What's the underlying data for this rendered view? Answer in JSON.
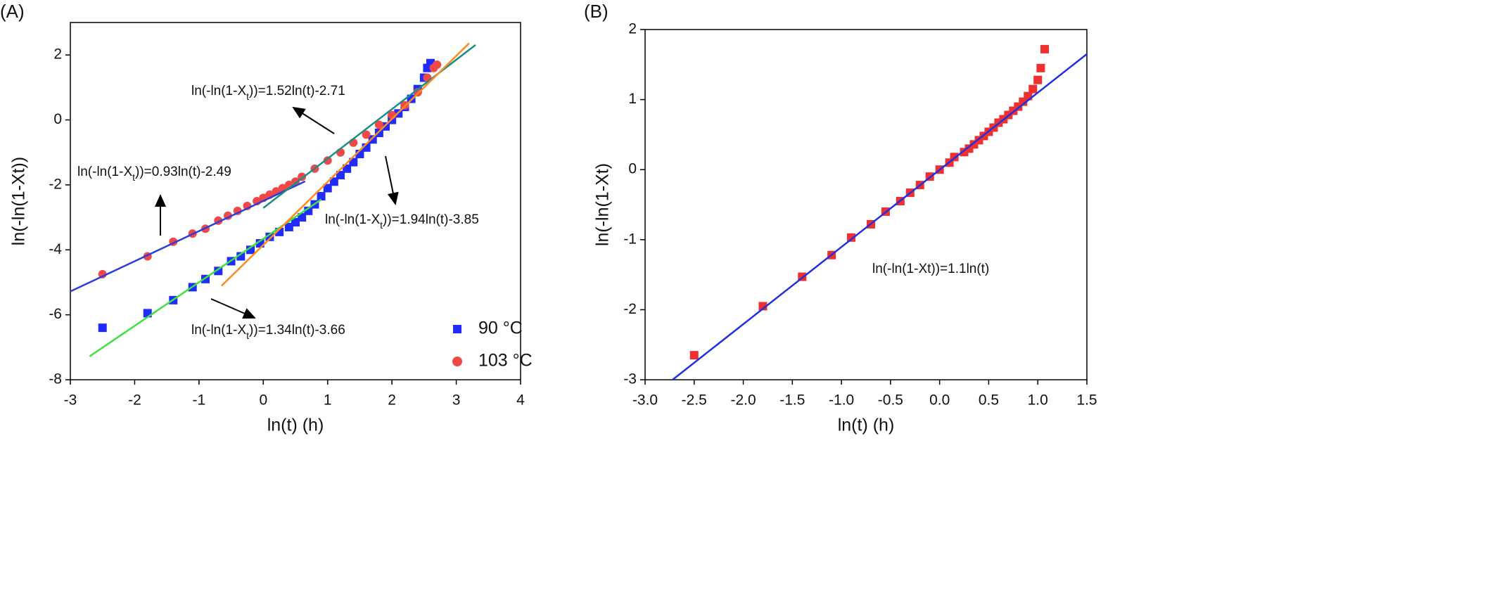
{
  "chart_data": [
    {
      "type": "scatter",
      "title": "(A)",
      "x_label": "ln(t) (h)",
      "y_label": "ln(-ln(1-Xt))",
      "xlim": [
        -3,
        4
      ],
      "ylim": [
        -8,
        3
      ],
      "xticks": [
        -3,
        -2,
        -1,
        0,
        1,
        2,
        3,
        4
      ],
      "yticks": [
        -8,
        -6,
        -4,
        -2,
        0,
        2
      ],
      "legend": "lower right",
      "series": [
        {
          "name": "90 °C",
          "color": "#1f2bff",
          "marker": "square",
          "x": [
            -2.5,
            -1.8,
            -1.4,
            -1.1,
            -0.9,
            -0.7,
            -0.5,
            -0.35,
            -0.2,
            -0.05,
            0.1,
            0.25,
            0.4,
            0.5,
            0.6,
            0.7,
            0.8,
            0.9,
            1.0,
            1.1,
            1.2,
            1.3,
            1.4,
            1.5,
            1.6,
            1.7,
            1.8,
            1.9,
            2.0,
            2.1,
            2.2,
            2.3,
            2.4,
            2.5,
            2.55,
            2.6
          ],
          "values": [
            -6.4,
            -5.95,
            -5.55,
            -5.15,
            -4.9,
            -4.65,
            -4.35,
            -4.2,
            -4.0,
            -3.8,
            -3.6,
            -3.45,
            -3.3,
            -3.15,
            -3.0,
            -2.8,
            -2.6,
            -2.35,
            -2.1,
            -1.9,
            -1.7,
            -1.5,
            -1.3,
            -1.05,
            -0.85,
            -0.6,
            -0.4,
            -0.2,
            0.0,
            0.2,
            0.4,
            0.65,
            0.95,
            1.3,
            1.6,
            1.75
          ]
        },
        {
          "name": "103 °C",
          "color": "#f04848",
          "marker": "circle",
          "x": [
            -2.5,
            -1.8,
            -1.4,
            -1.1,
            -0.9,
            -0.7,
            -0.55,
            -0.4,
            -0.25,
            -0.1,
            0.0,
            0.1,
            0.2,
            0.3,
            0.4,
            0.5,
            0.6,
            0.8,
            1.0,
            1.2,
            1.4,
            1.6,
            1.8,
            2.0,
            2.2,
            2.4,
            2.55,
            2.65,
            2.7
          ],
          "values": [
            -4.75,
            -4.2,
            -3.75,
            -3.5,
            -3.35,
            -3.1,
            -2.95,
            -2.8,
            -2.65,
            -2.5,
            -2.4,
            -2.3,
            -2.2,
            -2.1,
            -2.0,
            -1.9,
            -1.75,
            -1.5,
            -1.25,
            -1.0,
            -0.7,
            -0.45,
            -0.15,
            0.15,
            0.45,
            0.85,
            1.3,
            1.6,
            1.7
          ]
        }
      ],
      "fits": [
        {
          "color": "#2b3fd8",
          "x": [
            -3,
            0.65
          ],
          "values": [
            -5.28,
            -1.89
          ]
        },
        {
          "color": "#3ee03e",
          "x": [
            -2.7,
            0.9
          ],
          "values": [
            -7.28,
            -2.45
          ]
        },
        {
          "color": "#178f87",
          "x": [
            0,
            3.3
          ],
          "values": [
            -2.71,
            2.31
          ]
        },
        {
          "color": "#ff8a1c",
          "x": [
            -0.65,
            3.2
          ],
          "values": [
            -5.11,
            2.36
          ]
        }
      ],
      "annotations": [
        {
          "parts": [
            "ln(-ln(1-X",
            "t",
            "))=1.52ln(t)-2.71"
          ]
        },
        {
          "parts": [
            "ln(-ln(1-X",
            "t",
            "))=0.93ln(t)-2.49"
          ]
        },
        {
          "parts": [
            "ln(-ln(1-X",
            "t",
            "))=1.94ln(t)-3.85"
          ]
        },
        {
          "parts": [
            "ln(-ln(1-X",
            "t",
            "))=1.34ln(t)-3.66"
          ]
        }
      ]
    },
    {
      "type": "scatter",
      "title": "(B)",
      "x_label": "ln(t) (h)",
      "y_label": "ln(-ln(1-Xt)",
      "xlim": [
        -3,
        1.5
      ],
      "ylim": [
        -3,
        2
      ],
      "xticks": [
        {
          "value": -3,
          "label": "-3.0"
        },
        -2.5,
        {
          "value": -2,
          "label": "-2.0"
        },
        -1.5,
        {
          "value": -1,
          "label": "-1.0"
        },
        -0.5,
        {
          "value": 0,
          "label": "0.0"
        },
        0.5,
        {
          "value": 1,
          "label": "1.0"
        },
        1.5
      ],
      "yticks": [
        -3,
        -2,
        -1,
        0,
        1,
        2
      ],
      "series": [
        {
          "color": "#f03030",
          "marker": "square",
          "x": [
            -2.5,
            -1.8,
            -1.4,
            -1.1,
            -0.9,
            -0.7,
            -0.55,
            -0.4,
            -0.3,
            -0.2,
            -0.1,
            0.0,
            0.1,
            0.15,
            0.25,
            0.3,
            0.35,
            0.4,
            0.45,
            0.5,
            0.55,
            0.6,
            0.65,
            0.7,
            0.75,
            0.8,
            0.85,
            0.9,
            0.95,
            1.0,
            1.03,
            1.07
          ],
          "values": [
            -2.65,
            -1.95,
            -1.53,
            -1.22,
            -0.97,
            -0.78,
            -0.6,
            -0.45,
            -0.33,
            -0.22,
            -0.1,
            0.0,
            0.1,
            0.18,
            0.25,
            0.3,
            0.36,
            0.42,
            0.48,
            0.54,
            0.6,
            0.67,
            0.72,
            0.78,
            0.84,
            0.9,
            0.97,
            1.05,
            1.15,
            1.28,
            1.45,
            1.72
          ]
        }
      ],
      "fits": [
        {
          "color": "#2030e0",
          "x": [
            -2.72,
            1.5
          ],
          "values": [
            -3,
            1.65
          ]
        }
      ],
      "annotations": [
        {
          "parts": [
            "ln(-ln(1-Xt))=1.1ln(t)"
          ]
        }
      ]
    }
  ]
}
